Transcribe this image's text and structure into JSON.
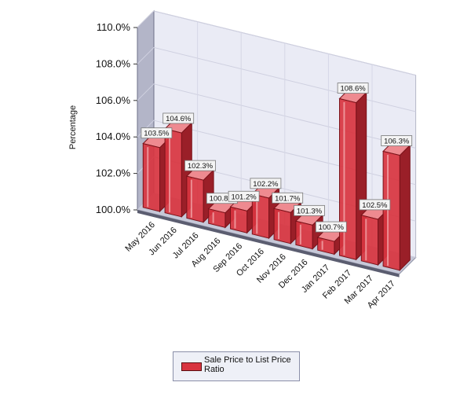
{
  "chart_data": {
    "type": "bar",
    "categories": [
      "May 2016",
      "Jun 2016",
      "Jul 2016",
      "Aug 2016",
      "Sep 2016",
      "Oct 2016",
      "Nov 2016",
      "Dec 2016",
      "Jan 2017",
      "Feb 2017",
      "Mar 2017",
      "Apr 2017"
    ],
    "series": [
      {
        "name": "Sale Price to List Price Ratio",
        "values": [
          103.5,
          104.6,
          102.3,
          100.8,
          101.2,
          102.2,
          101.7,
          101.3,
          100.7,
          108.6,
          102.5,
          106.3
        ],
        "data_labels": [
          "103.5%",
          "104.6%",
          "102.3%",
          "100.8%",
          "101.2%",
          "102.2%",
          "101.7%",
          "101.3%",
          "100.7%",
          "108.6%",
          "102.5%",
          "106.3%"
        ]
      }
    ],
    "ylabel": "Percentage",
    "ylim": [
      100,
      110
    ],
    "yticks": [
      100,
      102,
      104,
      106,
      108,
      110
    ],
    "ytick_labels": [
      "100.0%",
      "102.0%",
      "104.0%",
      "106.0%",
      "108.0%",
      "110.0%"
    ],
    "grid": true,
    "projection": "3d",
    "legend": "bottom-center",
    "colors": {
      "bar": "#d8343f",
      "bar_dark": "#7a1219",
      "wall": "#eaebf5",
      "wall_side": "#b3b5c8"
    }
  },
  "legend": {
    "label": "Sale Price to List Price Ratio"
  }
}
